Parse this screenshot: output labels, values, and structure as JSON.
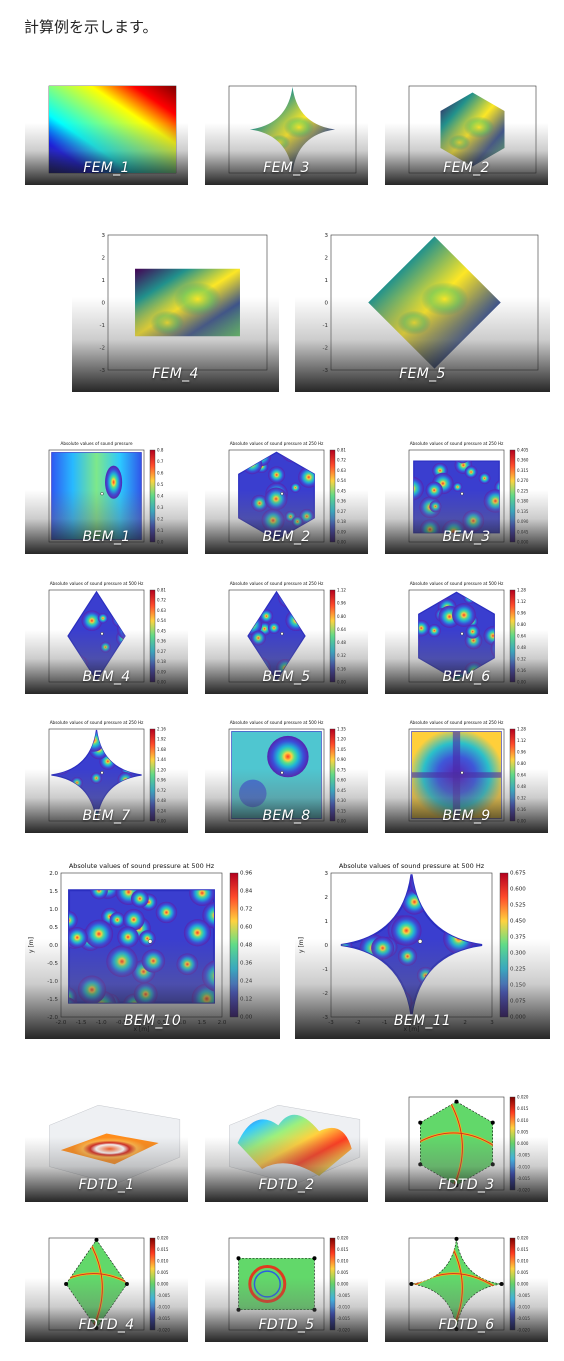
{
  "intro_text": "計算例を示します。",
  "captions": {
    "fem_1": "FEM_1",
    "fem_3": "FEM_3",
    "fem_2": "FEM_2",
    "fem_4": "FEM_4",
    "fem_5": "FEM_5",
    "bem_1": "BEM_1",
    "bem_2": "BEM_2",
    "bem_3": "BEM_3",
    "bem_4": "BEM_4",
    "bem_5": "BEM_5",
    "bem_6": "BEM_6",
    "bem_7": "BEM_7",
    "bem_8": "BEM_8",
    "bem_9": "BEM_9",
    "bem_10": "BEM_10",
    "bem_11": "BEM_11",
    "fdtd_1": "FDTD_1",
    "fdtd_2": "FDTD_2",
    "fdtd_3": "FDTD_3",
    "fdtd_4": "FDTD_4",
    "fdtd_5": "FDTD_5",
    "fdtd_6": "FDTD_6"
  },
  "plot_titles": {
    "bem_1": "Absolute values of sound pressure",
    "bem_250": "Absolute values of sound pressure at 250 Hz",
    "bem_500": "Absolute values of sound pressure at 500 Hz"
  },
  "axis_labels": {
    "x": "x [m]",
    "y": "y [m]"
  },
  "colors": {
    "jet": [
      "#00007f",
      "#0000ff",
      "#00ffff",
      "#80ff80",
      "#ffff00",
      "#ff0000",
      "#7f0000"
    ],
    "viridis": [
      "#440154",
      "#3b528b",
      "#21918c",
      "#5ec962",
      "#fde725"
    ],
    "fdtd_green": "#62d86a"
  },
  "colorbar_ticks": {
    "bem_1": [
      "0.8",
      "0.7",
      "0.6",
      "0.5",
      "0.4",
      "0.3",
      "0.2",
      "0.1",
      "0.0"
    ],
    "bem_2": [
      "0.81",
      "0.72",
      "0.63",
      "0.54",
      "0.45",
      "0.36",
      "0.27",
      "0.18",
      "0.09",
      "0.00"
    ],
    "bem_3": [
      "0.405",
      "0.360",
      "0.315",
      "0.270",
      "0.225",
      "0.180",
      "0.135",
      "0.090",
      "0.045",
      "0.000"
    ],
    "bem_4": [
      "0.81",
      "0.72",
      "0.63",
      "0.54",
      "0.45",
      "0.36",
      "0.27",
      "0.18",
      "0.09",
      "0.00"
    ],
    "bem_5": [
      "1.12",
      "0.96",
      "0.80",
      "0.64",
      "0.48",
      "0.32",
      "0.16",
      "0.00"
    ],
    "bem_6": [
      "1.28",
      "1.12",
      "0.96",
      "0.80",
      "0.64",
      "0.48",
      "0.32",
      "0.16",
      "0.00"
    ],
    "bem_7": [
      "2.16",
      "1.92",
      "1.68",
      "1.44",
      "1.20",
      "0.96",
      "0.72",
      "0.48",
      "0.24",
      "0.00"
    ],
    "bem_8": [
      "1.35",
      "1.20",
      "1.05",
      "0.90",
      "0.75",
      "0.60",
      "0.45",
      "0.30",
      "0.15",
      "0.00"
    ],
    "bem_9": [
      "1.28",
      "1.12",
      "0.96",
      "0.80",
      "0.64",
      "0.48",
      "0.32",
      "0.16",
      "0.00"
    ],
    "bem_10": [
      "0.96",
      "0.84",
      "0.72",
      "0.60",
      "0.48",
      "0.36",
      "0.24",
      "0.12",
      "0.00"
    ],
    "bem_11": [
      "0.675",
      "0.600",
      "0.525",
      "0.450",
      "0.375",
      "0.300",
      "0.225",
      "0.150",
      "0.075",
      "0.000"
    ],
    "fdtd": [
      "0.020",
      "0.015",
      "0.010",
      "0.005",
      "0.000",
      "-0.005",
      "-0.010",
      "-0.015",
      "-0.020"
    ]
  },
  "axis_ticks": {
    "bem_10_x": [
      "-2.0",
      "-1.5",
      "-1.0",
      "-0.5",
      "0.0",
      "0.5",
      "1.0",
      "1.5",
      "2.0"
    ],
    "bem_10_y": [
      "2.0",
      "1.5",
      "1.0",
      "0.5",
      "0.0",
      "-0.5",
      "-1.0",
      "-1.5",
      "-2.0"
    ],
    "bem_11_x": [
      "-3",
      "-2",
      "-1",
      "0",
      "1",
      "2",
      "3"
    ],
    "bem_11_y": [
      "3",
      "2",
      "1",
      "0",
      "-1",
      "-2",
      "-3"
    ],
    "fem_big": [
      "3",
      "2",
      "1",
      "0",
      "-1",
      "-2",
      "-3"
    ]
  }
}
